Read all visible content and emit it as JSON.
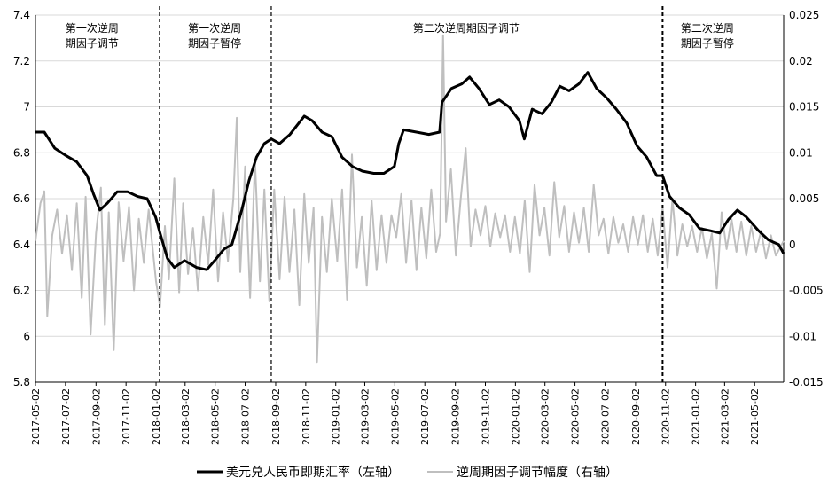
{
  "chart_data": {
    "type": "line",
    "title": "",
    "xlabel": "",
    "y_left_label": "",
    "y_right_label": "",
    "legend_position": "bottom",
    "grid": "horizontal",
    "x_range": [
      "2017-05-02",
      "2021-06-30"
    ],
    "y_left": {
      "range": [
        5.8,
        7.4
      ],
      "ticks": [
        "5.8",
        "6",
        "6.2",
        "6.4",
        "6.6",
        "6.8",
        "7",
        "7.2",
        "7.4"
      ]
    },
    "y_right": {
      "range": [
        -0.015,
        0.025
      ],
      "ticks": [
        "-0.015",
        "-0.01",
        "-0.005",
        "0",
        "0.005",
        "0.01",
        "0.015",
        "0.02",
        "0.025"
      ]
    },
    "x_ticks": [
      "2017-05-02",
      "2017-07-02",
      "2017-09-02",
      "2017-11-02",
      "2018-01-02",
      "2018-03-02",
      "2018-05-02",
      "2018-07-02",
      "2018-09-02",
      "2018-11-02",
      "2019-01-02",
      "2019-03-02",
      "2019-05-02",
      "2019-07-02",
      "2019-09-02",
      "2019-11-02",
      "2020-01-02",
      "2020-03-02",
      "2020-05-02",
      "2020-07-02",
      "2020-09-02",
      "2020-11-02",
      "2021-01-02",
      "2021-03-02",
      "2021-05-02"
    ],
    "vertical_lines": [
      "2018-01-09",
      "2018-08-24",
      "2020-10-27"
    ],
    "annotations": [
      {
        "lines": [
          "第一次逆周",
          "期因子调节"
        ],
        "date": "2017-08-25"
      },
      {
        "lines": [
          "第一次逆周",
          "期因子暂停"
        ],
        "date": "2018-05-01"
      },
      {
        "lines": [
          "第二次逆周期因子调节"
        ],
        "date": "2019-09-24"
      },
      {
        "lines": [
          "第二次逆周",
          "期因子暂停"
        ],
        "date": "2021-01-26"
      }
    ],
    "series": [
      {
        "name": "美元兑人民币即期汇率（左轴）",
        "axis": "left",
        "color": "#000000",
        "points": [
          [
            "2017-05-02",
            6.89
          ],
          [
            "2017-05-20",
            6.89
          ],
          [
            "2017-06-10",
            6.82
          ],
          [
            "2017-07-01",
            6.79
          ],
          [
            "2017-07-25",
            6.76
          ],
          [
            "2017-08-15",
            6.7
          ],
          [
            "2017-08-28",
            6.62
          ],
          [
            "2017-09-10",
            6.55
          ],
          [
            "2017-09-25",
            6.58
          ],
          [
            "2017-10-15",
            6.63
          ],
          [
            "2017-11-05",
            6.63
          ],
          [
            "2017-11-25",
            6.61
          ],
          [
            "2017-12-15",
            6.6
          ],
          [
            "2018-01-01",
            6.52
          ],
          [
            "2018-01-10",
            6.45
          ],
          [
            "2018-01-25",
            6.34
          ],
          [
            "2018-02-08",
            6.3
          ],
          [
            "2018-03-01",
            6.33
          ],
          [
            "2018-03-25",
            6.3
          ],
          [
            "2018-04-15",
            6.29
          ],
          [
            "2018-05-01",
            6.33
          ],
          [
            "2018-05-20",
            6.38
          ],
          [
            "2018-06-05",
            6.4
          ],
          [
            "2018-06-25",
            6.55
          ],
          [
            "2018-07-10",
            6.68
          ],
          [
            "2018-07-25",
            6.78
          ],
          [
            "2018-08-10",
            6.84
          ],
          [
            "2018-08-24",
            6.86
          ],
          [
            "2018-09-10",
            6.84
          ],
          [
            "2018-10-01",
            6.88
          ],
          [
            "2018-10-30",
            6.96
          ],
          [
            "2018-11-15",
            6.94
          ],
          [
            "2018-12-05",
            6.89
          ],
          [
            "2018-12-25",
            6.87
          ],
          [
            "2019-01-15",
            6.78
          ],
          [
            "2019-02-05",
            6.74
          ],
          [
            "2019-02-25",
            6.72
          ],
          [
            "2019-03-20",
            6.71
          ],
          [
            "2019-04-10",
            6.71
          ],
          [
            "2019-05-01",
            6.74
          ],
          [
            "2019-05-10",
            6.84
          ],
          [
            "2019-05-20",
            6.9
          ],
          [
            "2019-06-15",
            6.89
          ],
          [
            "2019-07-10",
            6.88
          ],
          [
            "2019-08-01",
            6.89
          ],
          [
            "2019-08-06",
            7.02
          ],
          [
            "2019-08-25",
            7.08
          ],
          [
            "2019-09-15",
            7.1
          ],
          [
            "2019-10-01",
            7.13
          ],
          [
            "2019-10-20",
            7.08
          ],
          [
            "2019-11-10",
            7.01
          ],
          [
            "2019-11-30",
            7.03
          ],
          [
            "2019-12-20",
            7.0
          ],
          [
            "2020-01-10",
            6.94
          ],
          [
            "2020-01-20",
            6.86
          ],
          [
            "2020-02-05",
            6.99
          ],
          [
            "2020-02-25",
            6.97
          ],
          [
            "2020-03-15",
            7.02
          ],
          [
            "2020-04-01",
            7.09
          ],
          [
            "2020-04-20",
            7.07
          ],
          [
            "2020-05-10",
            7.1
          ],
          [
            "2020-05-28",
            7.15
          ],
          [
            "2020-06-15",
            7.08
          ],
          [
            "2020-07-05",
            7.04
          ],
          [
            "2020-07-25",
            6.99
          ],
          [
            "2020-08-15",
            6.93
          ],
          [
            "2020-09-05",
            6.83
          ],
          [
            "2020-09-25",
            6.78
          ],
          [
            "2020-10-15",
            6.7
          ],
          [
            "2020-10-27",
            6.7
          ],
          [
            "2020-11-10",
            6.61
          ],
          [
            "2020-11-30",
            6.56
          ],
          [
            "2020-12-20",
            6.53
          ],
          [
            "2021-01-10",
            6.47
          ],
          [
            "2021-02-01",
            6.46
          ],
          [
            "2021-02-20",
            6.45
          ],
          [
            "2021-03-10",
            6.51
          ],
          [
            "2021-03-28",
            6.55
          ],
          [
            "2021-04-15",
            6.52
          ],
          [
            "2021-05-10",
            6.46
          ],
          [
            "2021-05-30",
            6.42
          ],
          [
            "2021-06-20",
            6.4
          ],
          [
            "2021-06-30",
            6.36
          ]
        ]
      },
      {
        "name": "逆周期因子调节幅度（右轴）",
        "axis": "right",
        "color": "#bfbfbf",
        "points": [
          [
            "2017-05-02",
            0.0004
          ],
          [
            "2017-05-12",
            0.0045
          ],
          [
            "2017-05-20",
            0.0058
          ],
          [
            "2017-05-26",
            -0.0078
          ],
          [
            "2017-06-05",
            0.001
          ],
          [
            "2017-06-15",
            0.0038
          ],
          [
            "2017-06-25",
            -0.001
          ],
          [
            "2017-07-05",
            0.0032
          ],
          [
            "2017-07-15",
            -0.0028
          ],
          [
            "2017-07-25",
            0.0045
          ],
          [
            "2017-08-04",
            -0.0058
          ],
          [
            "2017-08-12",
            0.0052
          ],
          [
            "2017-08-22",
            -0.0098
          ],
          [
            "2017-09-02",
            0.0012
          ],
          [
            "2017-09-12",
            0.0062
          ],
          [
            "2017-09-20",
            -0.0088
          ],
          [
            "2017-09-28",
            0.0035
          ],
          [
            "2017-10-08",
            -0.0115
          ],
          [
            "2017-10-18",
            0.0046
          ],
          [
            "2017-10-28",
            -0.0018
          ],
          [
            "2017-11-08",
            0.0041
          ],
          [
            "2017-11-18",
            -0.005
          ],
          [
            "2017-11-28",
            0.0028
          ],
          [
            "2017-12-08",
            -0.002
          ],
          [
            "2017-12-18",
            0.0038
          ],
          [
            "2018-01-02",
            -0.004
          ],
          [
            "2018-01-10",
            -0.0068
          ],
          [
            "2018-01-20",
            0.002
          ],
          [
            "2018-01-28",
            -0.0038
          ],
          [
            "2018-02-08",
            0.0072
          ],
          [
            "2018-02-18",
            -0.0052
          ],
          [
            "2018-02-26",
            0.0045
          ],
          [
            "2018-03-08",
            -0.0032
          ],
          [
            "2018-03-18",
            0.0018
          ],
          [
            "2018-03-28",
            -0.005
          ],
          [
            "2018-04-08",
            0.003
          ],
          [
            "2018-04-18",
            -0.0022
          ],
          [
            "2018-04-28",
            0.006
          ],
          [
            "2018-05-08",
            -0.004
          ],
          [
            "2018-05-18",
            0.0035
          ],
          [
            "2018-05-28",
            -0.0018
          ],
          [
            "2018-06-08",
            0.005
          ],
          [
            "2018-06-15",
            0.0138
          ],
          [
            "2018-06-22",
            -0.003
          ],
          [
            "2018-07-02",
            0.0085
          ],
          [
            "2018-07-12",
            -0.0058
          ],
          [
            "2018-07-22",
            0.0092
          ],
          [
            "2018-08-01",
            -0.004
          ],
          [
            "2018-08-10",
            0.006
          ],
          [
            "2018-08-20",
            -0.0062
          ],
          [
            "2018-08-30",
            0.006
          ],
          [
            "2018-09-10",
            -0.0038
          ],
          [
            "2018-09-20",
            0.0052
          ],
          [
            "2018-09-30",
            -0.003
          ],
          [
            "2018-10-10",
            0.0038
          ],
          [
            "2018-10-20",
            -0.0066
          ],
          [
            "2018-10-30",
            0.0055
          ],
          [
            "2018-11-08",
            -0.002
          ],
          [
            "2018-11-18",
            0.004
          ],
          [
            "2018-11-25",
            -0.0128
          ],
          [
            "2018-12-05",
            0.003
          ],
          [
            "2018-12-15",
            -0.003
          ],
          [
            "2018-12-25",
            0.005
          ],
          [
            "2019-01-05",
            -0.0018
          ],
          [
            "2019-01-15",
            0.006
          ],
          [
            "2019-01-25",
            -0.006
          ],
          [
            "2019-02-04",
            0.0098
          ],
          [
            "2019-02-14",
            -0.0025
          ],
          [
            "2019-02-24",
            0.003
          ],
          [
            "2019-03-06",
            -0.0045
          ],
          [
            "2019-03-16",
            0.0048
          ],
          [
            "2019-03-26",
            -0.0028
          ],
          [
            "2019-04-05",
            0.0032
          ],
          [
            "2019-04-15",
            -0.002
          ],
          [
            "2019-04-25",
            0.0032
          ],
          [
            "2019-05-05",
            0.0008
          ],
          [
            "2019-05-15",
            0.0055
          ],
          [
            "2019-05-25",
            -0.002
          ],
          [
            "2019-06-05",
            0.0048
          ],
          [
            "2019-06-15",
            -0.0028
          ],
          [
            "2019-06-25",
            0.004
          ],
          [
            "2019-07-05",
            -0.0015
          ],
          [
            "2019-07-15",
            0.006
          ],
          [
            "2019-07-25",
            -0.0008
          ],
          [
            "2019-08-02",
            0.0012
          ],
          [
            "2019-08-08",
            0.0228
          ],
          [
            "2019-08-14",
            0.0025
          ],
          [
            "2019-08-24",
            0.0082
          ],
          [
            "2019-09-03",
            -0.0012
          ],
          [
            "2019-09-13",
            0.005
          ],
          [
            "2019-09-23",
            0.0105
          ],
          [
            "2019-10-03",
            -0.0002
          ],
          [
            "2019-10-13",
            0.0038
          ],
          [
            "2019-10-23",
            0.001
          ],
          [
            "2019-11-02",
            0.0042
          ],
          [
            "2019-11-12",
            -0.0002
          ],
          [
            "2019-11-22",
            0.0034
          ],
          [
            "2019-12-02",
            0.0008
          ],
          [
            "2019-12-12",
            0.0032
          ],
          [
            "2019-12-22",
            -0.0008
          ],
          [
            "2020-01-01",
            0.003
          ],
          [
            "2020-01-11",
            -0.001
          ],
          [
            "2020-01-21",
            0.0048
          ],
          [
            "2020-01-31",
            -0.003
          ],
          [
            "2020-02-10",
            0.0065
          ],
          [
            "2020-02-20",
            0.001
          ],
          [
            "2020-03-01",
            0.004
          ],
          [
            "2020-03-11",
            -0.0012
          ],
          [
            "2020-03-21",
            0.0068
          ],
          [
            "2020-03-31",
            0.0008
          ],
          [
            "2020-04-10",
            0.0042
          ],
          [
            "2020-04-20",
            -0.0008
          ],
          [
            "2020-04-30",
            0.0035
          ],
          [
            "2020-05-10",
            0.0002
          ],
          [
            "2020-05-20",
            0.004
          ],
          [
            "2020-05-30",
            -0.0008
          ],
          [
            "2020-06-09",
            0.0065
          ],
          [
            "2020-06-19",
            0.001
          ],
          [
            "2020-06-29",
            0.0028
          ],
          [
            "2020-07-09",
            -0.001
          ],
          [
            "2020-07-19",
            0.003
          ],
          [
            "2020-07-29",
            0.0002
          ],
          [
            "2020-08-08",
            0.0022
          ],
          [
            "2020-08-18",
            -0.0008
          ],
          [
            "2020-08-28",
            0.003
          ],
          [
            "2020-09-07",
            0.0
          ],
          [
            "2020-09-17",
            0.0032
          ],
          [
            "2020-09-27",
            -0.0008
          ],
          [
            "2020-10-07",
            0.0028
          ],
          [
            "2020-10-17",
            -0.0012
          ],
          [
            "2020-10-27",
            0.004
          ],
          [
            "2020-11-06",
            -0.0025
          ],
          [
            "2020-11-16",
            0.005
          ],
          [
            "2020-11-26",
            -0.0012
          ],
          [
            "2020-12-06",
            0.0022
          ],
          [
            "2020-12-16",
            -0.0002
          ],
          [
            "2020-12-26",
            0.002
          ],
          [
            "2021-01-05",
            -0.0008
          ],
          [
            "2021-01-15",
            0.0018
          ],
          [
            "2021-01-25",
            -0.0015
          ],
          [
            "2021-02-04",
            0.0012
          ],
          [
            "2021-02-14",
            -0.0048
          ],
          [
            "2021-02-24",
            0.0035
          ],
          [
            "2021-03-06",
            -0.0005
          ],
          [
            "2021-03-16",
            0.0028
          ],
          [
            "2021-03-26",
            -0.0008
          ],
          [
            "2021-04-05",
            0.0025
          ],
          [
            "2021-04-15",
            -0.0012
          ],
          [
            "2021-04-25",
            0.002
          ],
          [
            "2021-05-05",
            -0.0008
          ],
          [
            "2021-05-15",
            0.0015
          ],
          [
            "2021-05-25",
            -0.0015
          ],
          [
            "2021-06-04",
            0.001
          ],
          [
            "2021-06-14",
            -0.0012
          ],
          [
            "2021-06-30",
            0.0004
          ]
        ]
      }
    ]
  }
}
